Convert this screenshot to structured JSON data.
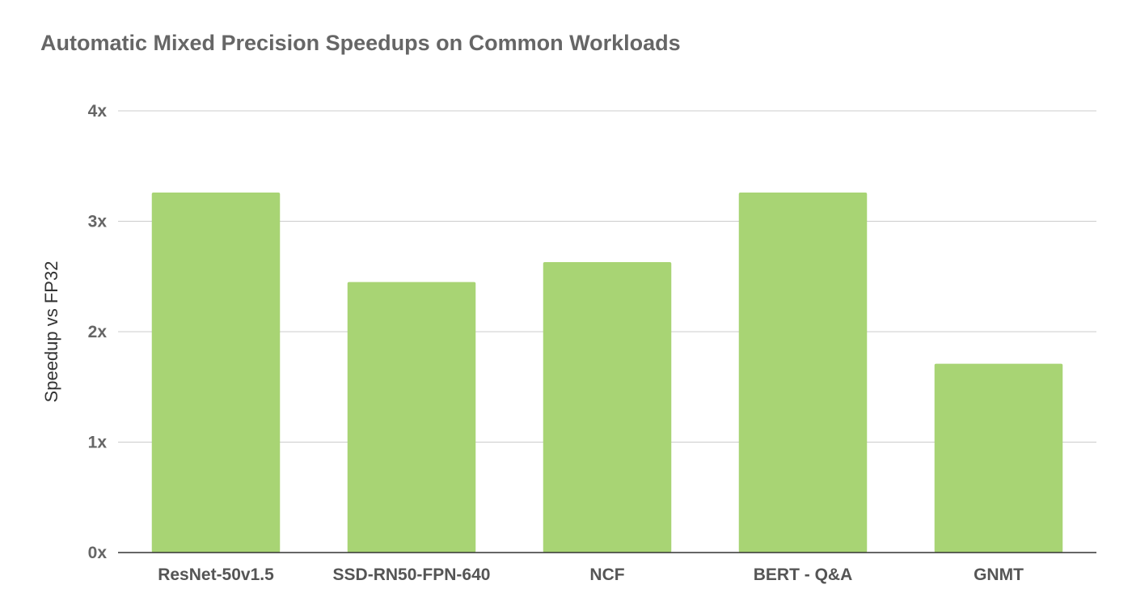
{
  "chart_data": {
    "type": "bar",
    "title": "Automatic Mixed Precision Speedups on Common Workloads",
    "xlabel": "",
    "ylabel": "Speedup vs FP32",
    "categories": [
      "ResNet-50v1.5",
      "SSD-RN50-FPN-640",
      "NCF",
      "BERT - Q&A",
      "GNMT"
    ],
    "values": [
      3.26,
      2.45,
      2.63,
      3.26,
      1.71
    ],
    "ylim": [
      0,
      4
    ],
    "yticks": [
      0,
      1,
      2,
      3,
      4
    ],
    "ytick_labels": [
      "0x",
      "1x",
      "2x",
      "3x",
      "4x"
    ],
    "grid": true,
    "legend": "none",
    "bar_color": "#a8d474",
    "grid_color": "#cccccc",
    "axis_color": "#333333"
  }
}
